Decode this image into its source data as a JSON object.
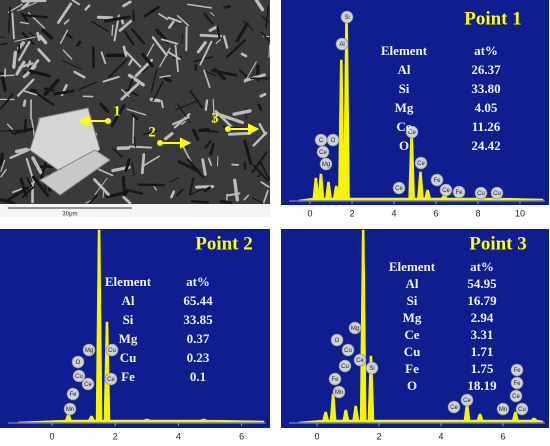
{
  "sem": {
    "markers": [
      "1",
      "2",
      "3"
    ],
    "scale_bar": "30μm"
  },
  "panels": [
    {
      "title": "Point 1",
      "table": {
        "header": [
          "Element",
          "at%"
        ],
        "rows": [
          [
            "Al",
            "26.37"
          ],
          [
            "Si",
            "33.80"
          ],
          [
            "Mg",
            "4.05"
          ],
          [
            "Ce",
            "11.26"
          ],
          [
            "O",
            "24.42"
          ]
        ]
      },
      "xticks": [
        "0",
        "2",
        "4",
        "6",
        "8",
        "10"
      ],
      "peaks": [
        "Si",
        "Al",
        "C",
        "O",
        "Ce",
        "Mg",
        "Ce",
        "Ce",
        "Ce",
        "Fe",
        "Ce",
        "Fe",
        "Cu",
        "Cu"
      ]
    },
    {
      "title": "Point 2",
      "table": {
        "header": [
          "Element",
          "at%"
        ],
        "rows": [
          [
            "Al",
            "65.44"
          ],
          [
            "Si",
            "33.85"
          ],
          [
            "Mg",
            "0.37"
          ],
          [
            "Cu",
            "0.23"
          ],
          [
            "Fe",
            "0.1"
          ]
        ]
      },
      "xticks": [
        "0",
        "2",
        "4",
        "6"
      ],
      "peaks": [
        "Mg",
        "Cu",
        "O",
        "Cu",
        "Ce",
        "Ce",
        "Fe",
        "Mn"
      ]
    },
    {
      "title": "Point 3",
      "table": {
        "header": [
          "Element",
          "at%"
        ],
        "rows": [
          [
            "Al",
            "54.95"
          ],
          [
            "Si",
            "16.79"
          ],
          [
            "Mg",
            "2.94"
          ],
          [
            "Ce",
            "3.31"
          ],
          [
            "Cu",
            "1.71"
          ],
          [
            "Fe",
            "1.75"
          ],
          [
            "O",
            "18.19"
          ]
        ]
      },
      "xticks": [
        "0",
        "2",
        "4",
        "6"
      ],
      "peaks": [
        "Mg",
        "O",
        "Cu",
        "Cu",
        "Ce",
        "Fe",
        "Mn",
        "Si",
        "Ce",
        "Ce",
        "Fe",
        "Fe",
        "Ce",
        "Mn",
        "Cu"
      ]
    }
  ]
}
